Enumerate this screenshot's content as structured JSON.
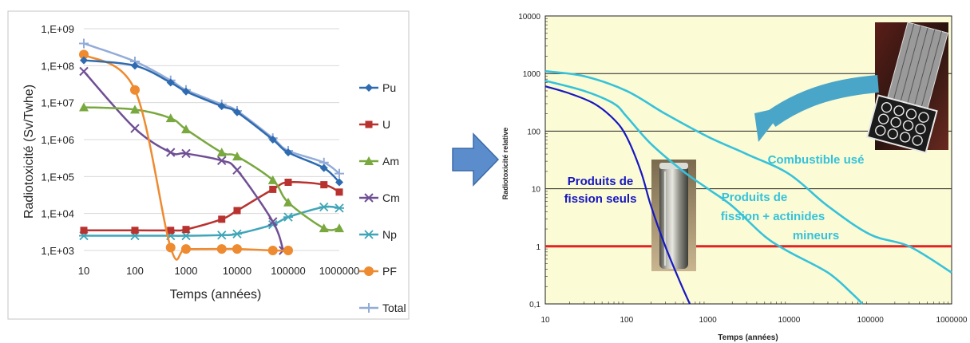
{
  "colors": {
    "Pu": "#2e6bb0",
    "U": "#b8322f",
    "Am": "#79a83f",
    "Cm": "#6f4f94",
    "Np": "#3fa5b8",
    "PF": "#ee8a2f",
    "Total": "#93acd8",
    "rightBg": "#fbfbd6",
    "fissionOnly": "#1717c0",
    "fissionActinides": "#36c2da",
    "combustible": "#36c2da",
    "threshold": "#e32222",
    "arrow": "#4aa6c8",
    "bigArrow": "#4f86c6"
  },
  "chart_data": [
    {
      "type": "line",
      "xscale": "log",
      "yscale": "log",
      "xlabel": "Temps (années)",
      "ylabel": "Radiotoxicité (Sv/Twhe)",
      "x_ticks": [
        "10",
        "100",
        "1000",
        "10000",
        "100000",
        "1000000"
      ],
      "y_ticks": [
        "1,E+03",
        "1,E+04",
        "1,E+05",
        "1,E+06",
        "1,E+07",
        "1,E+08",
        "1,E+09"
      ],
      "xlim": [
        10,
        1000000
      ],
      "ylim": [
        1000,
        1000000000
      ],
      "legend_position": "right",
      "grid": true,
      "series": [
        {
          "name": "Pu",
          "marker": "diamond",
          "x": [
            10,
            100,
            500,
            1000,
            5000,
            10000,
            50000,
            100000,
            500000,
            1000000
          ],
          "y": [
            140000000,
            100000000,
            35000000,
            20000000,
            8000000,
            5500000,
            1000000,
            450000,
            170000,
            70000
          ]
        },
        {
          "name": "U",
          "marker": "square",
          "x": [
            10,
            100,
            500,
            1000,
            5000,
            10000,
            50000,
            100000,
            500000,
            1000000
          ],
          "y": [
            3500,
            3500,
            3500,
            3700,
            7000,
            12000,
            45000,
            70000,
            60000,
            38000
          ]
        },
        {
          "name": "Am",
          "marker": "triangle",
          "x": [
            10,
            100,
            500,
            1000,
            5000,
            10000,
            50000,
            100000,
            500000,
            1000000
          ],
          "y": [
            7500000,
            6500000,
            3800000,
            1900000,
            450000,
            350000,
            80000,
            20000,
            4000,
            4000
          ]
        },
        {
          "name": "Cm",
          "marker": "x",
          "x": [
            10,
            100,
            500,
            1000,
            5000,
            10000,
            50000,
            80000
          ],
          "y": [
            70000000,
            2000000,
            450000,
            420000,
            270000,
            150000,
            6000,
            1000
          ]
        },
        {
          "name": "Np",
          "marker": "star",
          "x": [
            10,
            100,
            500,
            1000,
            5000,
            10000,
            50000,
            100000,
            500000,
            1000000
          ],
          "y": [
            2500,
            2500,
            2500,
            2500,
            2600,
            2800,
            5000,
            8000,
            15000,
            14000
          ]
        },
        {
          "name": "PF",
          "marker": "circle",
          "x": [
            10,
            100,
            500,
            1000,
            5000,
            10000,
            50000,
            100000
          ],
          "y": [
            200000000,
            22000000,
            1200,
            1100,
            1100,
            1100,
            1000,
            1000
          ]
        },
        {
          "name": "Total",
          "marker": "plus",
          "x": [
            10,
            100,
            500,
            1000,
            5000,
            10000,
            50000,
            100000,
            500000,
            1000000
          ],
          "y": [
            400000000,
            130000000,
            40000000,
            22000000,
            9000000,
            6000000,
            1100000,
            500000,
            240000,
            120000
          ]
        }
      ]
    },
    {
      "type": "line",
      "xscale": "log",
      "yscale": "log",
      "xlabel": "Temps (années)",
      "ylabel": "Radiotoxicité relative",
      "x_ticks": [
        "10",
        "100",
        "1000",
        "10000",
        "100000",
        "1000000"
      ],
      "y_ticks": [
        "0,1",
        "1",
        "10",
        "100",
        "1000",
        "10000"
      ],
      "xlim": [
        10,
        1000000
      ],
      "ylim": [
        0.1,
        10000
      ],
      "grid": "horizontal",
      "threshold": 1,
      "series": [
        {
          "key": "fissionOnly",
          "x": [
            10,
            20,
            40,
            70,
            100,
            150,
            200,
            300,
            450,
            600
          ],
          "y": [
            600,
            450,
            300,
            160,
            80,
            20,
            5,
            1,
            0.25,
            0.1
          ]
        },
        {
          "key": "fissionActinides",
          "x": [
            10,
            30,
            70,
            100,
            200,
            500,
            1000,
            2000,
            5000,
            10000,
            30000,
            60000,
            80000
          ],
          "y": [
            750,
            500,
            300,
            180,
            60,
            20,
            10,
            5,
            1.5,
            0.8,
            0.35,
            0.15,
            0.1
          ]
        },
        {
          "key": "combustible",
          "x": [
            10,
            30,
            100,
            300,
            1000,
            3000,
            10000,
            30000,
            100000,
            300000,
            1000000
          ],
          "y": [
            1100,
            900,
            500,
            200,
            80,
            40,
            18,
            5,
            1.6,
            1,
            0.35
          ]
        }
      ],
      "annotations": {
        "fissionOnly": [
          "Produits de",
          "fission seuls"
        ],
        "fissionActinides": [
          "Produits de",
          "fission + actinides",
          "mineurs"
        ],
        "combustible": [
          "Combustible usé"
        ]
      }
    }
  ]
}
